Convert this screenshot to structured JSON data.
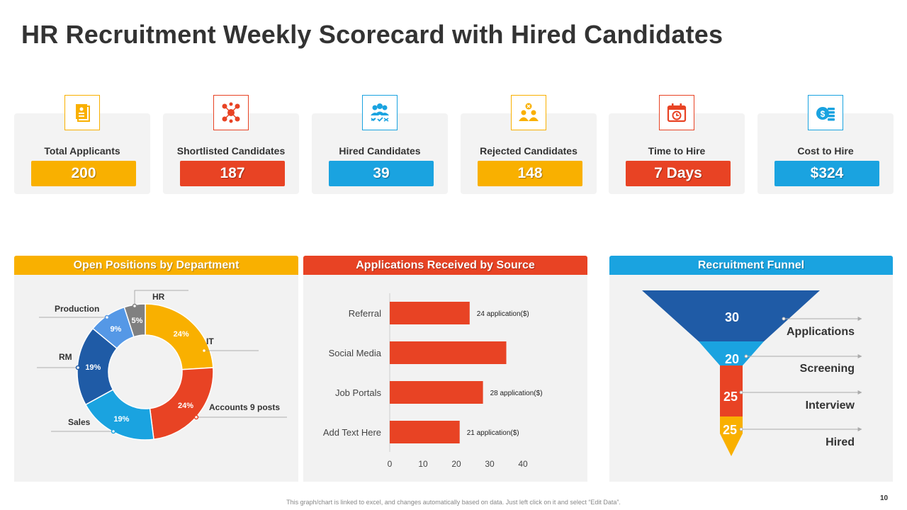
{
  "title": "HR Recruitment Weekly Scorecard with Hired Candidates",
  "colors": {
    "yellow": "#f9b000",
    "red": "#e84324",
    "blue": "#1aa3e0",
    "darkblue": "#1f5ba6",
    "midblue": "#5598e6",
    "grey": "#808080"
  },
  "kpis": [
    {
      "label": "Total Applicants",
      "value": "200",
      "icon": "document-icon"
    },
    {
      "label": "Shortlisted Candidates",
      "value": "187",
      "icon": "network-users-icon"
    },
    {
      "label": "Hired Candidates",
      "value": "39",
      "icon": "team-check-icon"
    },
    {
      "label": "Rejected Candidates",
      "value": "148",
      "icon": "users-reject-icon"
    },
    {
      "label": "Time to Hire",
      "value": "7 Days",
      "icon": "calendar-clock-icon"
    },
    {
      "label": "Cost  to Hire",
      "value": "$324",
      "icon": "money-coins-icon"
    }
  ],
  "panels": {
    "departments": "Open Positions by Department",
    "sources": "Applications Received by Source",
    "funnel": "Recruitment Funnel"
  },
  "chart_data": [
    {
      "type": "pie",
      "title": "Open Positions by Department",
      "slices": [
        {
          "name": "IT",
          "value": 24,
          "label": "24%",
          "callout": "IT"
        },
        {
          "name": "Accounts",
          "value": 24,
          "label": "24%",
          "callout": "Accounts 9 posts"
        },
        {
          "name": "Sales",
          "value": 19,
          "label": "19%",
          "callout": "Sales"
        },
        {
          "name": "RM",
          "value": 19,
          "label": "19%",
          "callout": "RM"
        },
        {
          "name": "Production",
          "value": 9,
          "label": "9%",
          "callout": "Production"
        },
        {
          "name": "HR",
          "value": 5,
          "label": "5%",
          "callout": "HR"
        }
      ]
    },
    {
      "type": "bar",
      "title": "Applications Received by Source",
      "orientation": "horizontal",
      "categories": [
        "Referral",
        "Social Media",
        "Job Portals",
        "Add Text Here"
      ],
      "values": [
        24,
        35,
        28,
        21
      ],
      "data_labels": [
        "24 application($)",
        "",
        "28 application($)",
        "21 application($)"
      ],
      "xticks": [
        "0",
        "10",
        "20",
        "30",
        "40"
      ],
      "xlim": [
        0,
        40
      ]
    },
    {
      "type": "funnel",
      "title": "Recruitment Funnel",
      "stages": [
        {
          "name": "Applications",
          "value": "30"
        },
        {
          "name": "Screening",
          "value": "20"
        },
        {
          "name": "Interview",
          "value": "25"
        },
        {
          "name": "Hired",
          "value": "25"
        }
      ]
    }
  ],
  "footer": {
    "note": "This graph/chart is linked to excel, and changes automatically based on data. Just left click on it and select “Edit Data”.",
    "page": "10"
  }
}
